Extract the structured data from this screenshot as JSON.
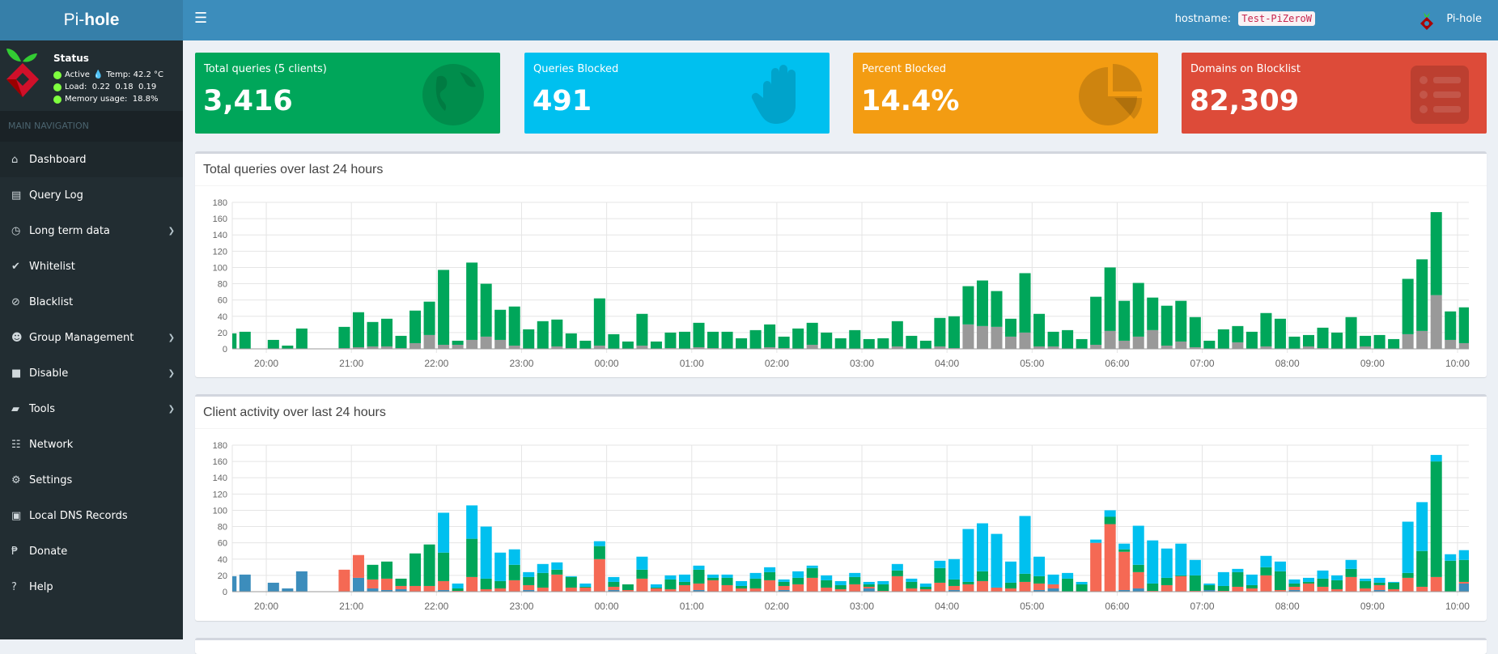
{
  "app": {
    "logo_light": "Pi-",
    "logo_bold": "hole",
    "hostname_label": "hostname:",
    "hostname": "Test-PiZeroW",
    "user": "Pi-hole"
  },
  "status": {
    "title": "Status",
    "active": "Active",
    "temp": "Temp: 42.2 °C",
    "load": "Load:  0.22  0.18  0.19",
    "memory": "Memory usage:  18.8%"
  },
  "nav": {
    "header": "MAIN NAVIGATION",
    "items": [
      {
        "label": "Dashboard",
        "icon": "home-icon",
        "glyph": "⌂",
        "active": true
      },
      {
        "label": "Query Log",
        "icon": "file-icon",
        "glyph": "▤"
      },
      {
        "label": "Long term data",
        "icon": "clock-icon",
        "glyph": "◷",
        "submenu": true
      },
      {
        "label": "Whitelist",
        "icon": "check-circle-icon",
        "glyph": "✔"
      },
      {
        "label": "Blacklist",
        "icon": "ban-icon",
        "glyph": "⊘"
      },
      {
        "label": "Group Management",
        "icon": "users-icon",
        "glyph": "☻",
        "submenu": true
      },
      {
        "label": "Disable",
        "icon": "stop-icon",
        "glyph": "■",
        "submenu": true
      },
      {
        "label": "Tools",
        "icon": "folder-icon",
        "glyph": "▰",
        "submenu": true
      },
      {
        "label": "Network",
        "icon": "sitemap-icon",
        "glyph": "☷"
      },
      {
        "label": "Settings",
        "icon": "gears-icon",
        "glyph": "⚙"
      },
      {
        "label": "Local DNS Records",
        "icon": "address-book-icon",
        "glyph": "▣"
      },
      {
        "label": "Donate",
        "icon": "paypal-icon",
        "glyph": "₱"
      },
      {
        "label": "Help",
        "icon": "question-circle-icon",
        "glyph": "?"
      }
    ]
  },
  "stats": [
    {
      "label": "Total queries (5 clients)",
      "value": "3,416",
      "color": "#00a65a",
      "icon": "globe-icon"
    },
    {
      "label": "Queries Blocked",
      "value": "491",
      "color": "#00c0ef",
      "icon": "hand-icon"
    },
    {
      "label": "Percent Blocked",
      "value": "14.4%",
      "color": "#f39c12",
      "icon": "pie-chart-icon"
    },
    {
      "label": "Domains on Blocklist",
      "value": "82,309",
      "color": "#dd4b39",
      "icon": "list-icon"
    }
  ],
  "chart_data": [
    {
      "type": "bar",
      "stacked": true,
      "title": "Total queries over last 24 hours",
      "ylim": [
        0,
        180
      ],
      "yticks": [
        0,
        20,
        40,
        60,
        80,
        100,
        120,
        140,
        160,
        180
      ],
      "xticks": [
        "20:00",
        "21:00",
        "22:00",
        "23:00",
        "00:00",
        "01:00",
        "02:00",
        "03:00",
        "04:00",
        "05:00",
        "06:00",
        "07:00",
        "08:00",
        "09:00",
        "10:00"
      ],
      "xlim": [
        "19:36",
        "10:08"
      ],
      "grid": true,
      "interval_minutes": 10,
      "start": "19:30",
      "colors": {
        "permitted": "#00a65a",
        "blocked": "#999999"
      },
      "total": [
        19,
        21,
        0,
        11,
        4,
        25,
        0,
        0,
        27,
        45,
        33,
        37,
        16,
        47,
        58,
        97,
        10,
        106,
        80,
        48,
        52,
        24,
        34,
        36,
        19,
        10,
        62,
        18,
        9,
        43,
        9,
        20,
        21,
        32,
        21,
        21,
        13,
        23,
        30,
        15,
        25,
        32,
        20,
        13,
        23,
        12,
        13,
        34,
        16,
        10,
        38,
        40,
        77,
        84,
        71,
        37,
        93,
        43,
        21,
        23,
        12,
        64,
        100,
        59,
        81,
        63,
        53,
        59,
        39,
        10,
        24,
        28,
        21,
        44,
        37,
        15,
        17,
        26,
        20,
        39,
        16,
        17,
        12,
        86,
        110,
        168,
        46,
        51
      ],
      "blocked": [
        0,
        0,
        0,
        0,
        0,
        0,
        0,
        0,
        1,
        2,
        3,
        3,
        1,
        7,
        17,
        5,
        5,
        11,
        15,
        11,
        4,
        0,
        0,
        3,
        1,
        0,
        4,
        0,
        0,
        4,
        0,
        1,
        0,
        2,
        1,
        0,
        0,
        0,
        2,
        1,
        0,
        5,
        0,
        0,
        0,
        0,
        0,
        3,
        0,
        0,
        3,
        1,
        30,
        28,
        27,
        15,
        20,
        3,
        3,
        0,
        0,
        5,
        22,
        10,
        15,
        23,
        4,
        9,
        2,
        0,
        0,
        8,
        0,
        3,
        0,
        0,
        3,
        1,
        0,
        0,
        3,
        0,
        0,
        18,
        22,
        66,
        11,
        7
      ]
    },
    {
      "type": "bar",
      "stacked": true,
      "title": "Client activity over last 24 hours",
      "ylim": [
        0,
        180
      ],
      "yticks": [
        0,
        20,
        40,
        60,
        80,
        100,
        120,
        140,
        160,
        180
      ],
      "xticks": [
        "20:00",
        "21:00",
        "22:00",
        "23:00",
        "00:00",
        "01:00",
        "02:00",
        "03:00",
        "04:00",
        "05:00",
        "06:00",
        "07:00",
        "08:00",
        "09:00",
        "10:00"
      ],
      "xlim": [
        "19:36",
        "10:08"
      ],
      "grid": true,
      "interval_minutes": 10,
      "start": "19:30",
      "series": [
        {
          "color": "#3c8dbc",
          "values": [
            19,
            21,
            0,
            11,
            4,
            25,
            0,
            0,
            0,
            17,
            4,
            2,
            3,
            0,
            0,
            2,
            0,
            0,
            0,
            0,
            0,
            2,
            0,
            0,
            0,
            0,
            0,
            2,
            0,
            0,
            0,
            0,
            0,
            2,
            0,
            0,
            0,
            0,
            0,
            2,
            0,
            0,
            0,
            0,
            0,
            4,
            0,
            0,
            0,
            0,
            0,
            2,
            0,
            0,
            0,
            0,
            0,
            2,
            4,
            0,
            0,
            0,
            0,
            2,
            4,
            0,
            0,
            0,
            0,
            2,
            0,
            0,
            0,
            0,
            0,
            2,
            0,
            0,
            0,
            0,
            0,
            2,
            0,
            0,
            0,
            0,
            0,
            10
          ]
        },
        {
          "color": "#f56954",
          "values": [
            0,
            0,
            0,
            0,
            0,
            0,
            0,
            0,
            27,
            28,
            11,
            14,
            4,
            7,
            7,
            11,
            1,
            18,
            3,
            4,
            14,
            6,
            5,
            21,
            5,
            5,
            40,
            4,
            2,
            16,
            4,
            3,
            8,
            8,
            14,
            8,
            4,
            4,
            14,
            5,
            9,
            17,
            5,
            3,
            9,
            2,
            1,
            19,
            4,
            3,
            11,
            5,
            9,
            13,
            5,
            4,
            12,
            8,
            5,
            0,
            0,
            60,
            83,
            47,
            20,
            1,
            8,
            19,
            1,
            0,
            1,
            6,
            4,
            20,
            2,
            4,
            10,
            6,
            3,
            18,
            4,
            6,
            3,
            17,
            6,
            18,
            0,
            2
          ]
        },
        {
          "color": "#00a65a",
          "values": [
            0,
            0,
            0,
            0,
            0,
            0,
            0,
            0,
            0,
            0,
            18,
            21,
            9,
            40,
            51,
            35,
            3,
            47,
            13,
            9,
            19,
            10,
            18,
            6,
            13,
            1,
            16,
            6,
            7,
            11,
            1,
            12,
            4,
            17,
            3,
            9,
            3,
            12,
            10,
            5,
            8,
            12,
            9,
            5,
            9,
            3,
            8,
            7,
            8,
            3,
            18,
            8,
            3,
            12,
            0,
            7,
            10,
            9,
            0,
            16,
            9,
            0,
            9,
            3,
            9,
            9,
            9,
            1,
            19,
            6,
            6,
            18,
            4,
            10,
            23,
            4,
            2,
            10,
            11,
            10,
            9,
            3,
            8,
            6,
            44,
            142,
            38,
            27
          ]
        },
        {
          "color": "#00c0ef",
          "values": [
            0,
            0,
            0,
            0,
            0,
            0,
            0,
            0,
            0,
            0,
            0,
            0,
            0,
            0,
            0,
            49,
            6,
            41,
            64,
            35,
            19,
            6,
            11,
            9,
            1,
            4,
            6,
            6,
            0,
            16,
            4,
            5,
            9,
            5,
            4,
            4,
            6,
            7,
            6,
            3,
            8,
            3,
            6,
            5,
            5,
            3,
            4,
            8,
            4,
            4,
            9,
            25,
            65,
            59,
            66,
            26,
            71,
            24,
            12,
            7,
            3,
            4,
            8,
            7,
            48,
            53,
            36,
            39,
            19,
            2,
            17,
            4,
            13,
            14,
            12,
            5,
            5,
            10,
            6,
            11,
            3,
            6,
            1,
            63,
            60,
            8,
            8,
            12
          ]
        }
      ]
    }
  ]
}
